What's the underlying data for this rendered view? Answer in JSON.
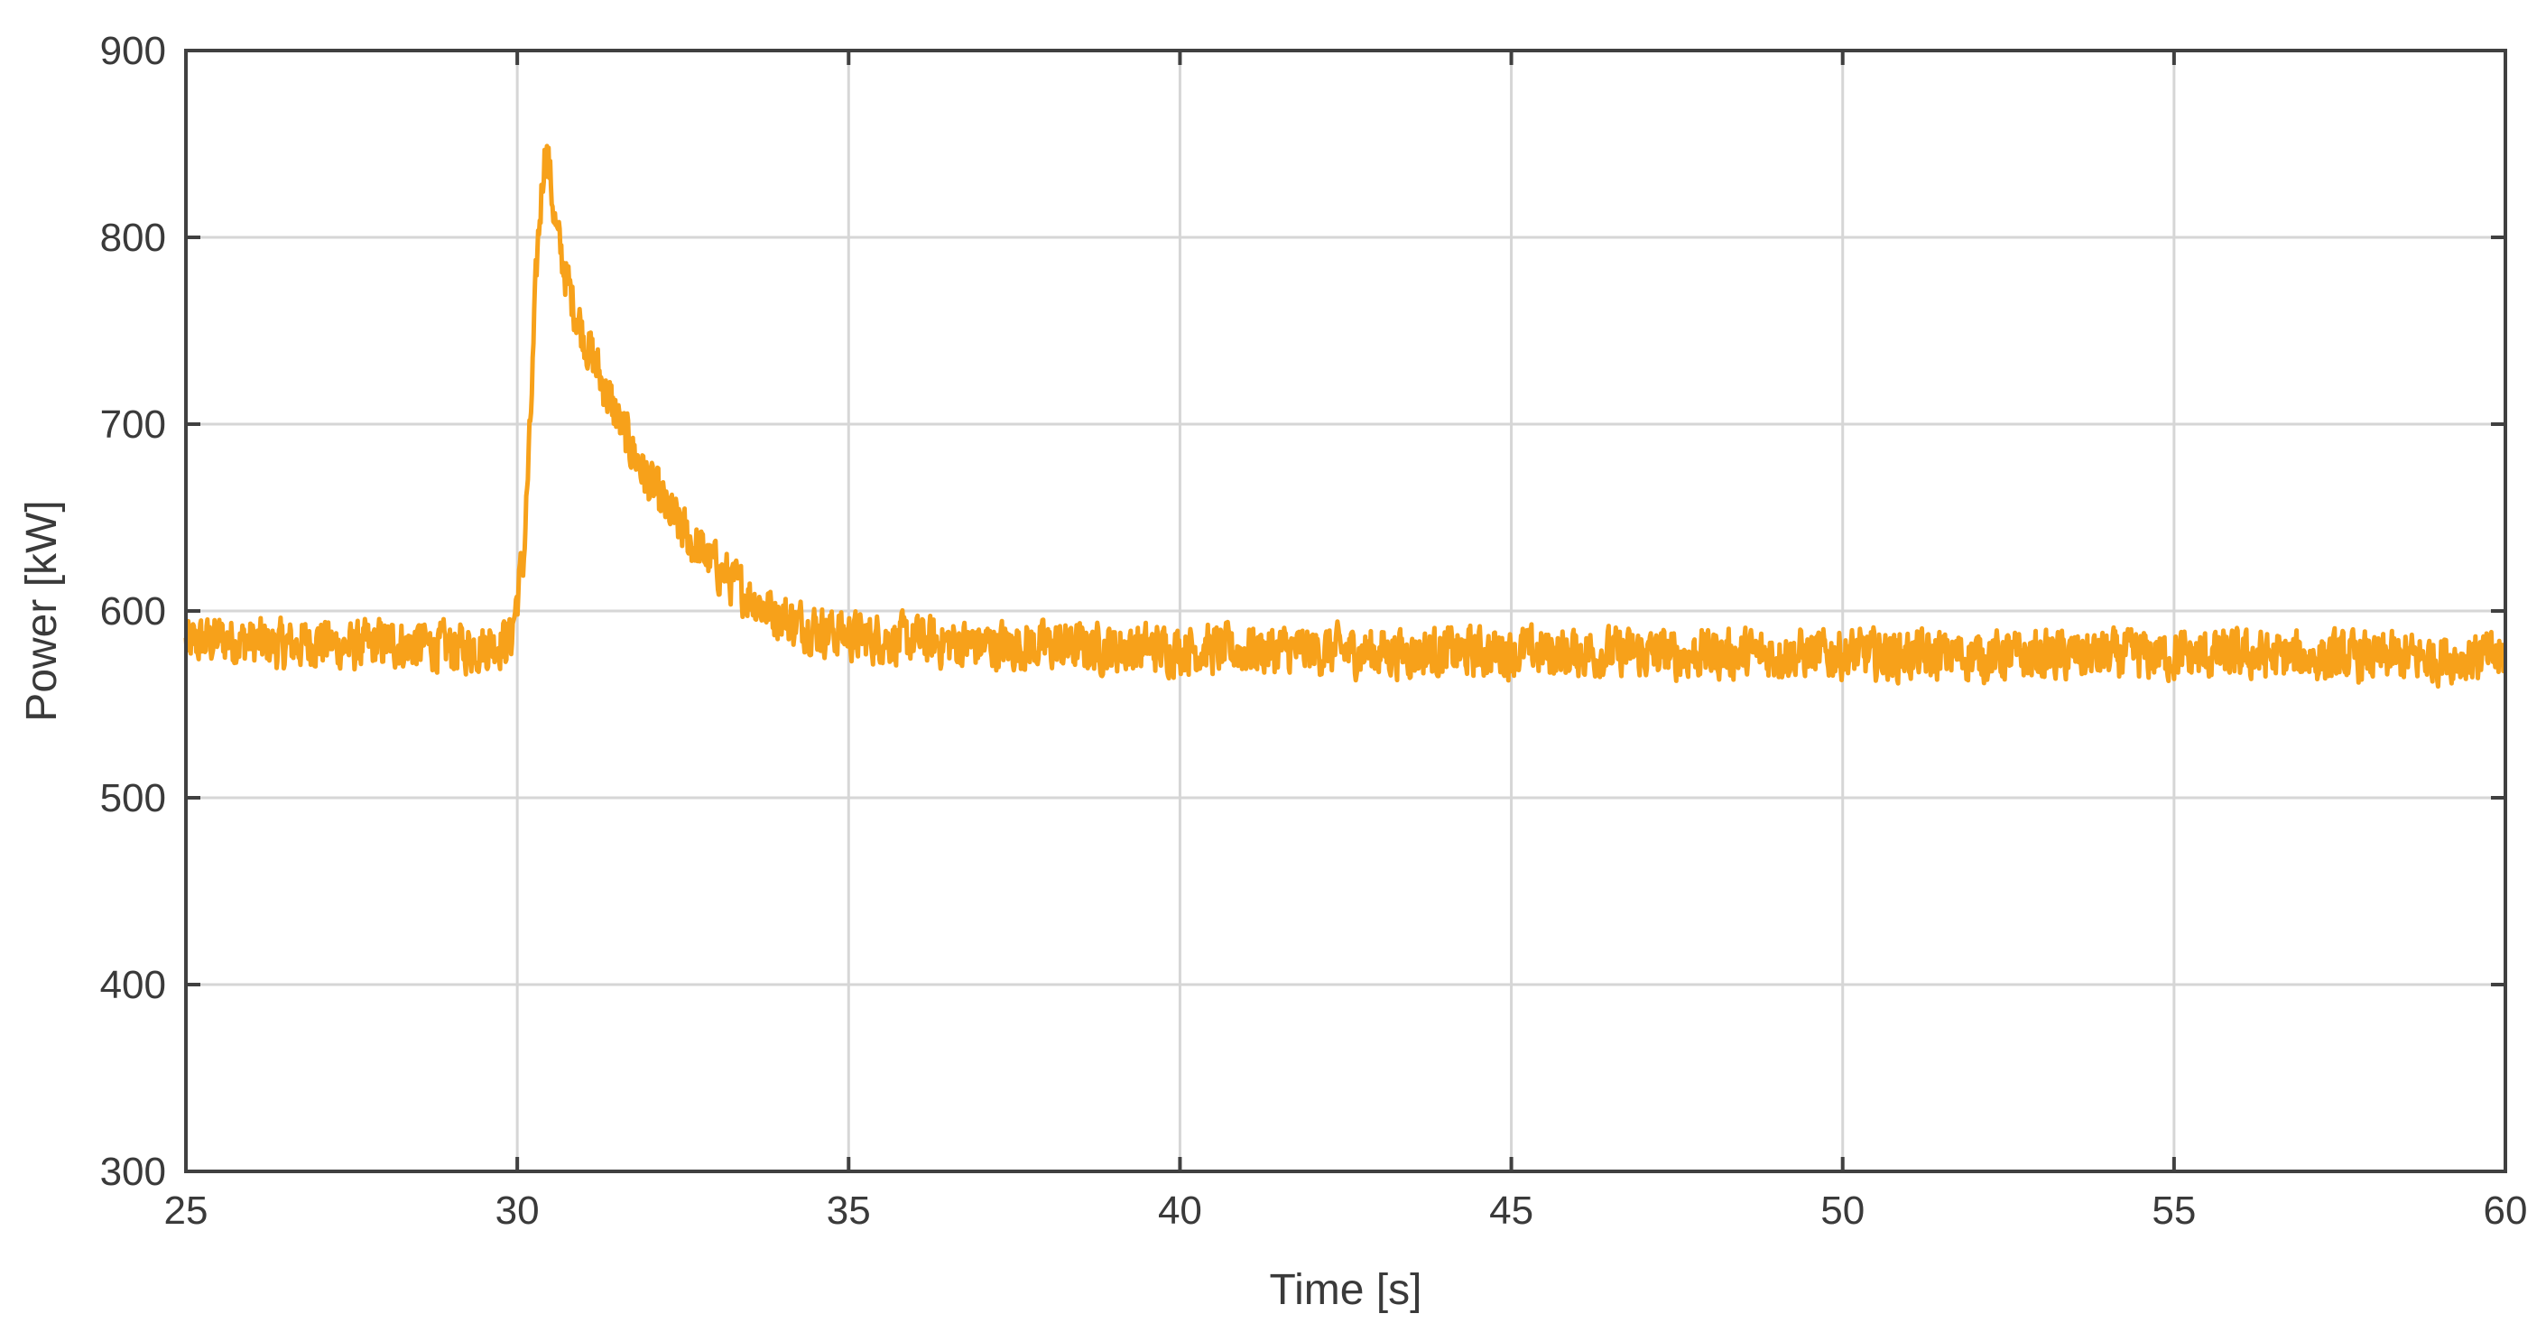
{
  "chart_data": {
    "type": "line",
    "title": "",
    "xlabel": "Time [s]",
    "ylabel": "Power [kW]",
    "xlim": [
      25,
      60
    ],
    "ylim": [
      300,
      900
    ],
    "xticks": [
      25,
      30,
      35,
      40,
      45,
      50,
      55,
      60
    ],
    "yticks": [
      300,
      400,
      500,
      600,
      700,
      800,
      900
    ],
    "xtick_labels": [
      "25",
      "30",
      "35",
      "40",
      "45",
      "50",
      "55",
      "60"
    ],
    "ytick_labels": [
      "300",
      "400",
      "500",
      "600",
      "700",
      "800",
      "900"
    ],
    "grid": true,
    "legend": "none",
    "series": [
      {
        "color": "#f7a11a",
        "x": [
          25.0,
          25.5,
          26.0,
          26.5,
          27.0,
          27.5,
          28.0,
          28.5,
          29.0,
          29.5,
          29.9,
          30.1,
          30.2,
          30.3,
          30.4,
          30.45,
          30.5,
          30.6,
          30.8,
          31.0,
          31.2,
          31.4,
          31.6,
          31.8,
          32.0,
          32.3,
          32.6,
          33.0,
          33.4,
          33.8,
          34.2,
          34.7,
          35.2,
          36.0,
          37.0,
          38.0,
          39.0,
          40.0,
          41.0,
          42.0,
          43.0,
          44.0,
          45.0,
          46.0,
          47.0,
          48.0,
          49.0,
          50.0,
          51.0,
          52.0,
          53.0,
          54.0,
          55.0,
          56.0,
          57.0,
          58.0,
          59.0,
          60.0
        ],
        "y": [
          582,
          585,
          583,
          581,
          584,
          580,
          583,
          582,
          580,
          581,
          585,
          630,
          700,
          790,
          842,
          848,
          830,
          800,
          770,
          748,
          730,
          712,
          696,
          682,
          668,
          652,
          638,
          624,
          611,
          600,
          594,
          589,
          586,
          584,
          582,
          581,
          580,
          580,
          579,
          579,
          578,
          578,
          578,
          578,
          577,
          577,
          577,
          577,
          576,
          576,
          576,
          576,
          576,
          576,
          575,
          575,
          575,
          575
        ],
        "noise_amplitude_kw": 18
      }
    ]
  }
}
